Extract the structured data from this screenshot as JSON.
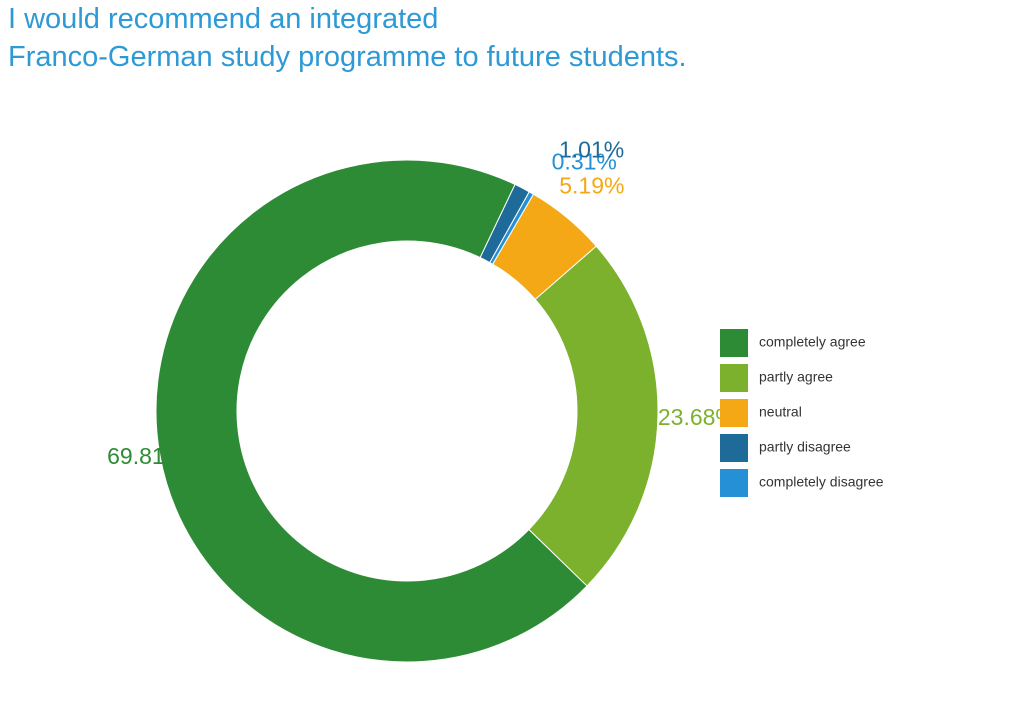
{
  "chart_data": {
    "type": "pie",
    "variant": "donut",
    "title_lines": [
      "I would recommend an integrated",
      "Franco-German study programme to future students."
    ],
    "title_color": "#2d9ad6",
    "unit": "%",
    "slices": [
      {
        "label": "completely agree",
        "value": 69.81,
        "color": "#2e8b35",
        "label_text": "69.81%"
      },
      {
        "label": "partly agree",
        "value": 23.68,
        "color": "#7cb12e",
        "label_text": "23.68%"
      },
      {
        "label": "neutral",
        "value": 5.19,
        "color": "#f5a816",
        "label_text": "5.19%"
      },
      {
        "label": "completely disagree",
        "value": 0.31,
        "color": "#2590d5",
        "label_text": "0.31%"
      },
      {
        "label": "partly disagree",
        "value": 1.01,
        "color": "#1e6b99",
        "label_text": "1.01%"
      }
    ],
    "legend": {
      "position": "right",
      "entries": [
        {
          "label": "completely agree",
          "color": "#2e8b35"
        },
        {
          "label": "partly agree",
          "color": "#7cb12e"
        },
        {
          "label": "neutral",
          "color": "#f5a816"
        },
        {
          "label": "partly disagree",
          "color": "#1e6b99"
        },
        {
          "label": "completely disagree",
          "color": "#2590d5"
        }
      ]
    }
  }
}
